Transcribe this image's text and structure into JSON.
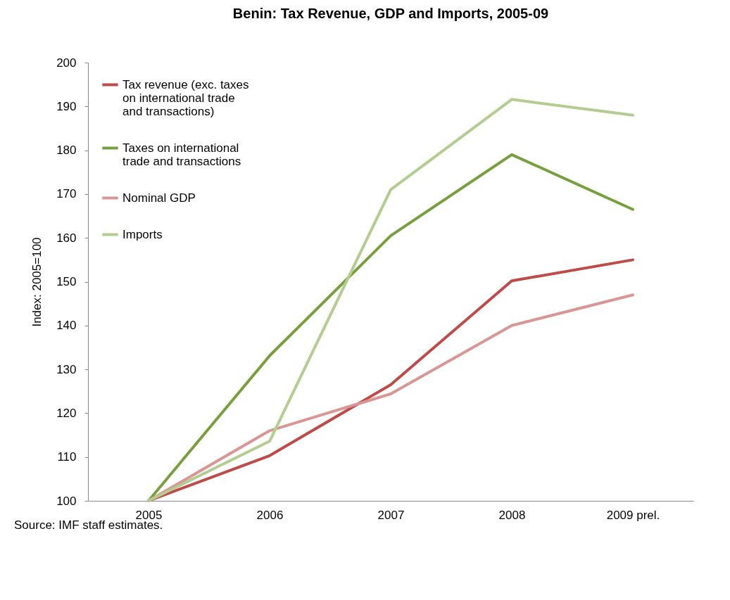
{
  "chart_data": {
    "type": "line",
    "title": "Benin: Tax Revenue, GDP and Imports, 2005-09",
    "ylabel": "Index: 2005=100",
    "categories": [
      "2005",
      "2006",
      "2007",
      "2008",
      "2009 prel."
    ],
    "series": [
      {
        "name": "Tax revenue (exc. taxes on international trade and transactions)",
        "color": "#be4b48",
        "values": [
          100,
          110.3,
          126.5,
          150.2,
          155
        ]
      },
      {
        "name": "Taxes on international trade and transactions",
        "color": "#77a03c",
        "values": [
          100,
          133.1,
          160.5,
          179,
          166.5
        ]
      },
      {
        "name": "Nominal GDP",
        "color": "#d99694",
        "values": [
          100,
          116,
          124.4,
          140,
          147
        ]
      },
      {
        "name": "Imports",
        "color": "#b3cc8f",
        "values": [
          100,
          113.6,
          171,
          191.6,
          188
        ]
      }
    ],
    "ylim": [
      100,
      200
    ],
    "yticks": [
      100,
      110,
      120,
      130,
      140,
      150,
      160,
      170,
      180,
      190,
      200
    ],
    "grid": false,
    "legend": "top left",
    "marker": "none",
    "line_style": "solid",
    "annotations": [
      "Source:  IMF staff estimates."
    ]
  }
}
